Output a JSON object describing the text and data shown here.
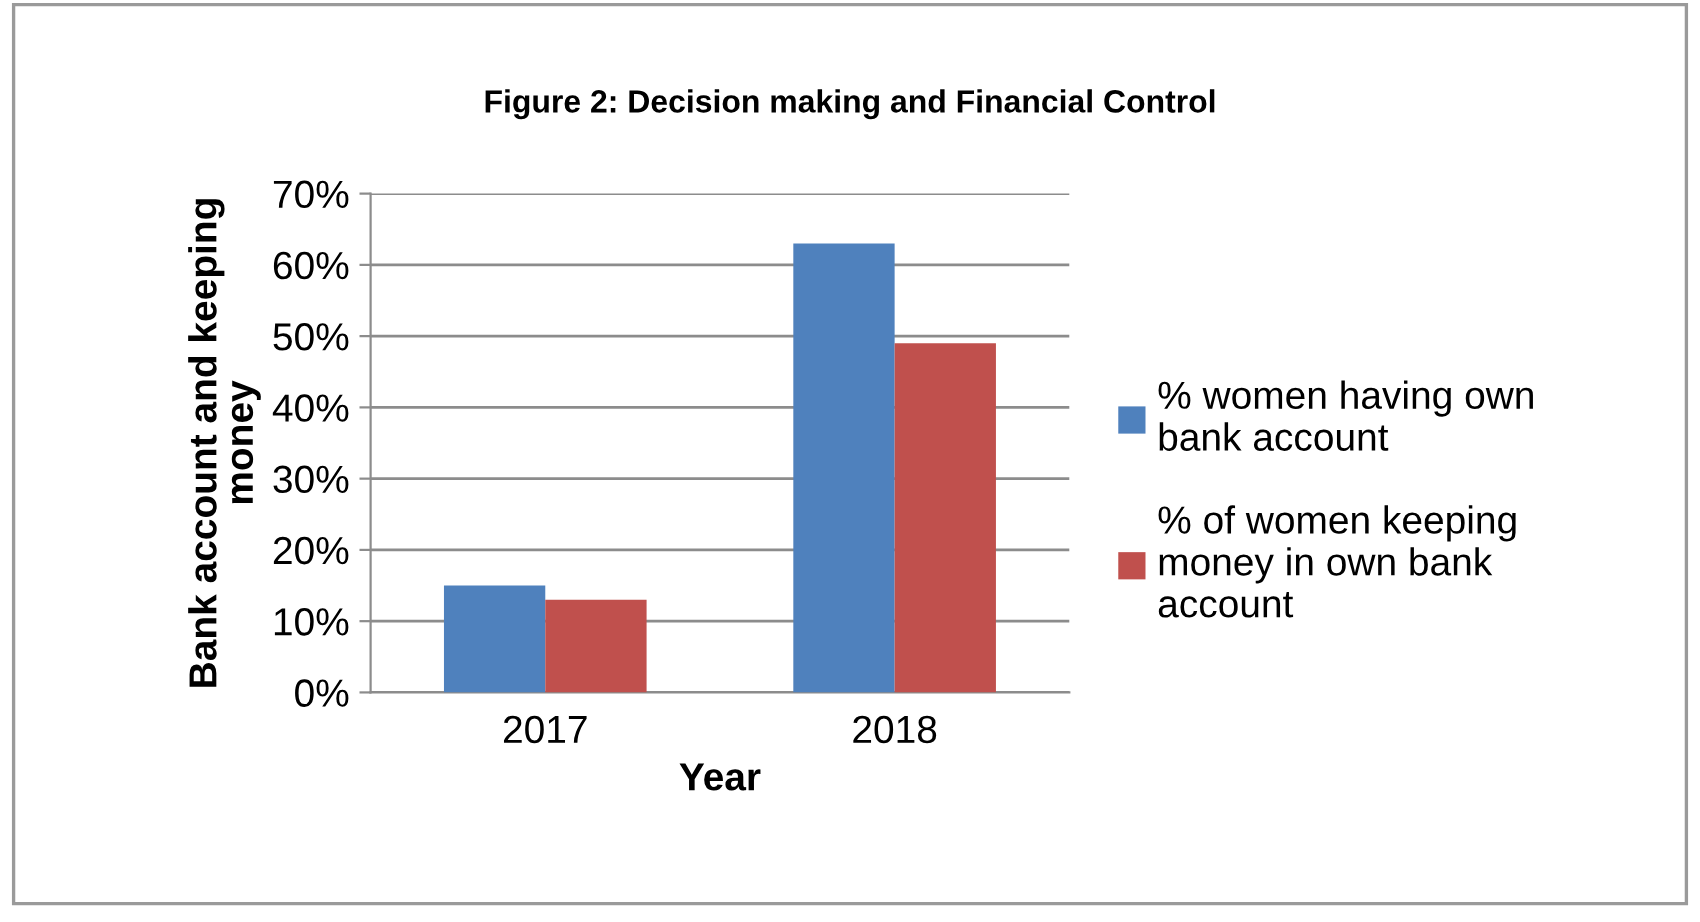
{
  "chart_data": {
    "type": "bar",
    "title": "Figure 2: Decision making and Financial Control",
    "xlabel": "Year",
    "ylabel": "Bank account and keeping\nmoney",
    "categories": [
      "2017",
      "2018"
    ],
    "series": [
      {
        "name": "% women having own\nbank account",
        "color": "#4f81bd",
        "values": [
          15,
          63
        ]
      },
      {
        "name": "% of women keeping\nmoney in own bank\naccount",
        "color": "#c0504d",
        "values": [
          13,
          49
        ]
      }
    ],
    "ylim": [
      0,
      70
    ],
    "yticks": [
      {
        "value": 0,
        "label": "0%"
      },
      {
        "value": 10,
        "label": "10%"
      },
      {
        "value": 20,
        "label": "20%"
      },
      {
        "value": 30,
        "label": "30%"
      },
      {
        "value": 40,
        "label": "40%"
      },
      {
        "value": 50,
        "label": "50%"
      },
      {
        "value": 60,
        "label": "60%"
      },
      {
        "value": 70,
        "label": "70%"
      }
    ],
    "grid": "y",
    "legend": "right"
  }
}
